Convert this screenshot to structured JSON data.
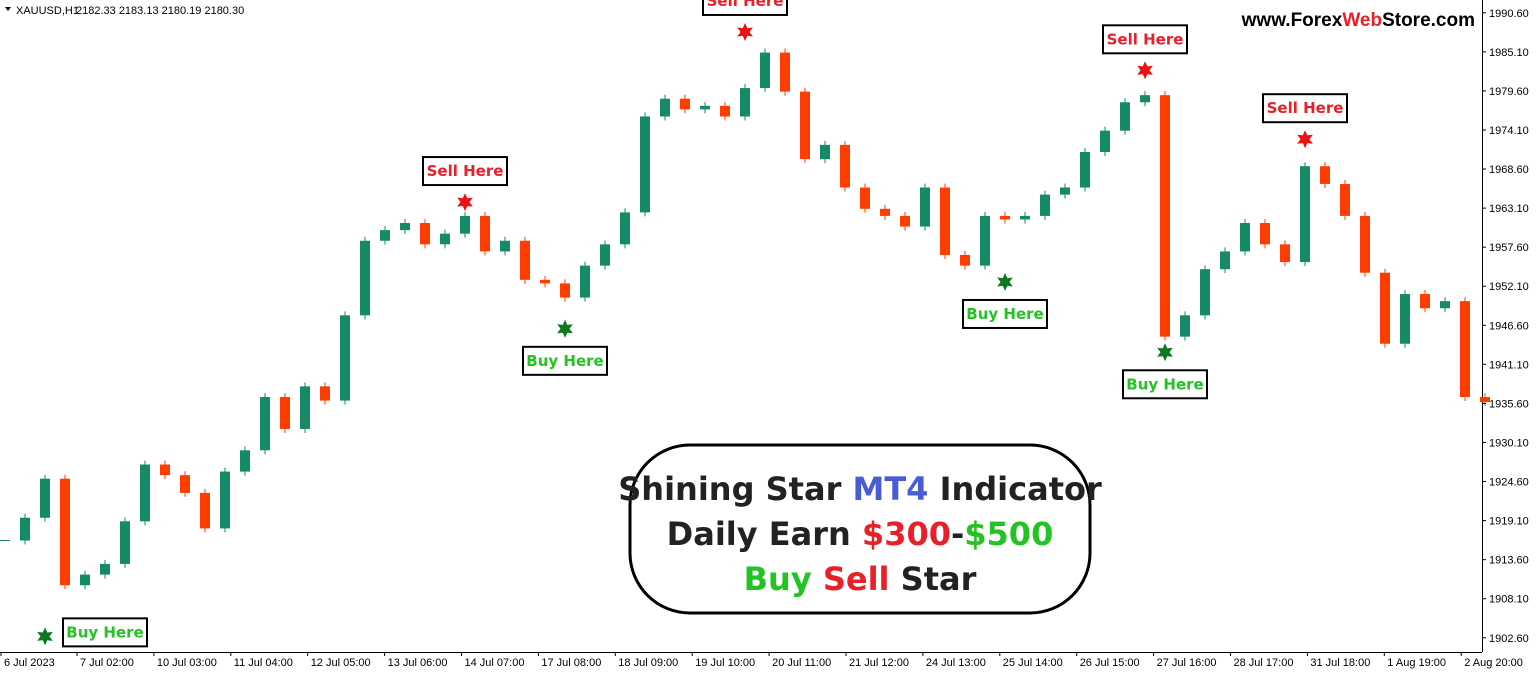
{
  "chart_data": {
    "type": "candlestick",
    "symbol": "XAUUSD,H1",
    "quote": "2182.33 2183.13 2180.19 2180.30",
    "watermark": [
      {
        "text": "www.Forex",
        "color": "#000000"
      },
      {
        "text": "Web",
        "color": "#e8202a"
      },
      {
        "text": "Store.com",
        "color": "#000000"
      }
    ],
    "up_color": "#148a67",
    "down_color": "#ff3d00",
    "closes": [
      1916.3,
      1919.5,
      1925,
      1910,
      1911.5,
      1913,
      1919,
      1927,
      1925.5,
      1923,
      1918,
      1926,
      1929,
      1936.5,
      1932,
      1938,
      1936,
      1948,
      1958.5,
      1960,
      1961,
      1958,
      1959.5,
      1962,
      1957,
      1958.5,
      1953,
      1952.5,
      1950.5,
      1955,
      1958,
      1962.5,
      1976,
      1978.5,
      1977,
      1977.5,
      1976,
      1980,
      1985,
      1979.5,
      1970,
      1972,
      1966,
      1963,
      1962,
      1960.5,
      1966,
      1956.5,
      1955,
      1962,
      1961.5,
      1962,
      1965,
      1966,
      1971,
      1974,
      1978,
      1979,
      1945,
      1948,
      1954.5,
      1957,
      1961,
      1958,
      1955.5,
      1969,
      1966.5,
      1962,
      1954,
      1944,
      1951,
      1949,
      1950,
      1936.5,
      1935.8
    ],
    "ylim": [
      1900.6,
      1992.4
    ],
    "yticks": [
      {
        "value": 1990.6,
        "label": "1990.60"
      },
      {
        "value": 1985.1,
        "label": "1985.10"
      },
      {
        "value": 1979.6,
        "label": "1979.60"
      },
      {
        "value": 1974.1,
        "label": "1974.10"
      },
      {
        "value": 1968.6,
        "label": "1968.60"
      },
      {
        "value": 1963.1,
        "label": "1963.10"
      },
      {
        "value": 1957.6,
        "label": "1957.60"
      },
      {
        "value": 1952.1,
        "label": "1952.10"
      },
      {
        "value": 1946.6,
        "label": "1946.60"
      },
      {
        "value": 1941.1,
        "label": "1941.10"
      },
      {
        "value": 1935.6,
        "label": "1935.60"
      },
      {
        "value": 1930.1,
        "label": "1930.10"
      },
      {
        "value": 1924.6,
        "label": "1924.60"
      },
      {
        "value": 1919.1,
        "label": "1919.10"
      },
      {
        "value": 1913.6,
        "label": "1913.60"
      },
      {
        "value": 1908.1,
        "label": "1908.10"
      },
      {
        "value": 1902.6,
        "label": "1902.60"
      }
    ],
    "xtick_labels": [
      "6 Jul 2023",
      "7 Jul 02:00",
      "10 Jul 03:00",
      "11 Jul 04:00",
      "12 Jul 05:00",
      "13 Jul 06:00",
      "14 Jul 07:00",
      "17 Jul 08:00",
      "18 Jul 09:00",
      "19 Jul 10:00",
      "20 Jul 11:00",
      "21 Jul 12:00",
      "24 Jul 13:00",
      "25 Jul 14:00",
      "26 Jul 15:00",
      "27 Jul 16:00",
      "28 Jul 17:00",
      "31 Jul 18:00",
      "1 Aug 19:00",
      "2 Aug 20:00"
    ],
    "signals": [
      {
        "label": "Buy Here",
        "index": 2,
        "value": 1902.8,
        "label_color": "#22c322",
        "star_color": "#0b7a1f"
      },
      {
        "label": "Sell Here",
        "index": 23,
        "value": 1963.95,
        "label_color": "#e8202a",
        "star_color": "#ee1111"
      },
      {
        "label": "Buy Here",
        "index": 28,
        "value": 1946.1,
        "label_color": "#22c322",
        "star_color": "#0b7a1f"
      },
      {
        "label": "Sell Here",
        "index": 37,
        "value": 1987.9,
        "label_color": "#e8202a",
        "star_color": "#ee1111"
      },
      {
        "label": "Buy Here",
        "index": 50,
        "value": 1952.7,
        "label_color": "#22c322",
        "star_color": "#0b7a1f"
      },
      {
        "label": "Sell Here",
        "index": 57,
        "value": 1982.5,
        "label_color": "#e8202a",
        "star_color": "#ee1111"
      },
      {
        "label": "Buy Here",
        "index": 58,
        "value": 1942.8,
        "label_color": "#22c322",
        "star_color": "#0b7a1f"
      },
      {
        "label": "Sell Here",
        "index": 65,
        "value": 1972.8,
        "label_color": "#e8202a",
        "star_color": "#ee1111"
      }
    ],
    "headline": [
      [
        {
          "text": "Shining Star ",
          "color": "#222222"
        },
        {
          "text": "MT4",
          "color": "#4a5bd6"
        },
        {
          "text": " Indicator",
          "color": "#222222"
        }
      ],
      [
        {
          "text": "Daily Earn ",
          "color": "#222222"
        },
        {
          "text": "$300",
          "color": "#e8202a"
        },
        {
          "text": "-",
          "color": "#222222"
        },
        {
          "text": "$500",
          "color": "#22c322"
        }
      ],
      [
        {
          "text": "Buy ",
          "color": "#22c322"
        },
        {
          "text": "Sell",
          "color": "#e8202a"
        },
        {
          "text": " Star",
          "color": "#222222"
        }
      ]
    ]
  }
}
